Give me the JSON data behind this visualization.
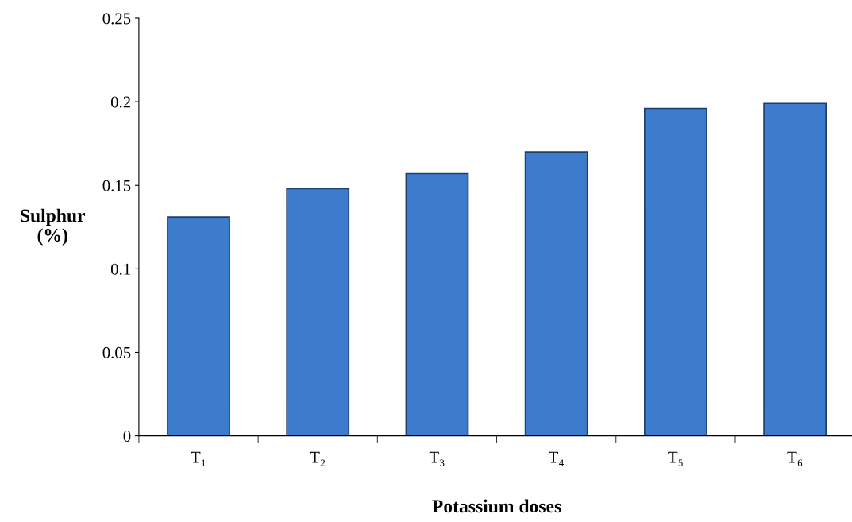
{
  "chart_data": {
    "type": "bar",
    "xlabel": "Potassium doses",
    "ylabel": "Sulphur\n(%)",
    "categories": [
      "T₁",
      "T₂",
      "T₃",
      "T₄",
      "T₅",
      "T₆"
    ],
    "values": [
      0.131,
      0.148,
      0.157,
      0.17,
      0.196,
      0.199
    ],
    "color": "#3d7ccc",
    "ylim": [
      0,
      0.25
    ],
    "yticks": [
      0,
      0.05,
      0.1,
      0.15,
      0.2,
      0.25
    ],
    "grid": false,
    "legend": false
  }
}
